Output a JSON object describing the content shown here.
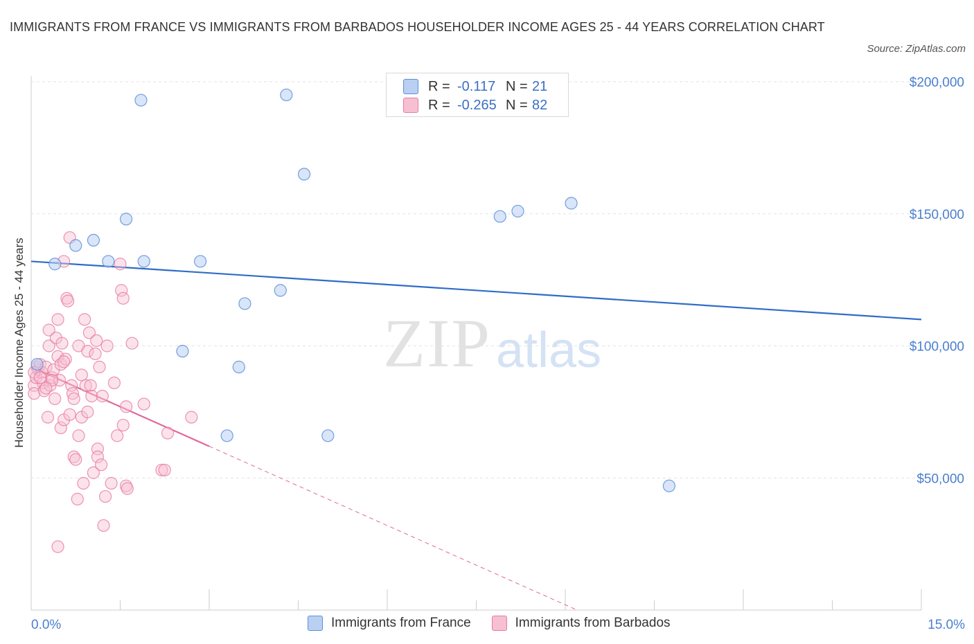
{
  "title": "IMMIGRANTS FROM FRANCE VS IMMIGRANTS FROM BARBADOS HOUSEHOLDER INCOME AGES 25 - 44 YEARS CORRELATION CHART",
  "source": "Source: ZipAtlas.com",
  "watermark": {
    "zip": "ZIP",
    "atlas": "atlas"
  },
  "colors": {
    "france": "#5b8fd9",
    "france_fill": "#b9d0f2",
    "france_line": "#2f6cc8",
    "barbados": "#e8799f",
    "barbados_fill": "#f6c0d2",
    "barbados_line": "#e0679a",
    "grid": "#e2e2e2",
    "axis": "#cccccc",
    "tick_text": "#4a7fd0"
  },
  "legend": {
    "france": {
      "r_label": "R =",
      "r_value": "-0.117",
      "n_label": "N =",
      "n_value": "21"
    },
    "barbados": {
      "r_label": "R =",
      "r_value": "-0.265",
      "n_label": "N =",
      "n_value": "82"
    }
  },
  "bottom_legend": {
    "france": "Immigrants from France",
    "barbados": "Immigrants from Barbados"
  },
  "chart_data": {
    "type": "scatter",
    "title": "IMMIGRANTS FROM FRANCE VS IMMIGRANTS FROM BARBADOS HOUSEHOLDER INCOME AGES 25 - 44 YEARS CORRELATION CHART",
    "xlabel": "",
    "ylabel": "Householder Income Ages 25 - 44 years",
    "xlim": [
      0,
      15
    ],
    "ylim": [
      0,
      200000
    ],
    "x_tick_labels": [
      "0.0%",
      "15.0%"
    ],
    "y_ticks": [
      50000,
      100000,
      150000,
      200000
    ],
    "y_tick_labels": [
      "$50,000",
      "$100,000",
      "$150,000",
      "$200,000"
    ],
    "grid": true,
    "legend_position": "top-center",
    "series": [
      {
        "name": "Immigrants from France",
        "r": -0.117,
        "n": 21,
        "points": [
          [
            0.1,
            93000
          ],
          [
            0.4,
            131000
          ],
          [
            0.75,
            138000
          ],
          [
            1.05,
            140000
          ],
          [
            1.3,
            132000
          ],
          [
            1.6,
            148000
          ],
          [
            1.85,
            193000
          ],
          [
            1.9,
            132000
          ],
          [
            2.55,
            98000
          ],
          [
            2.85,
            132000
          ],
          [
            3.3,
            66000
          ],
          [
            3.5,
            92000
          ],
          [
            3.6,
            116000
          ],
          [
            4.2,
            121000
          ],
          [
            4.3,
            195000
          ],
          [
            4.6,
            165000
          ],
          [
            5.0,
            66000
          ],
          [
            7.9,
            149000
          ],
          [
            8.2,
            151000
          ],
          [
            9.1,
            154000
          ],
          [
            10.75,
            47000
          ]
        ],
        "trend": {
          "x": [
            0,
            15
          ],
          "y": [
            132000,
            110000
          ]
        }
      },
      {
        "name": "Immigrants from Barbados",
        "r": -0.265,
        "n": 82,
        "points": [
          [
            0.05,
            85000
          ],
          [
            0.05,
            82000
          ],
          [
            0.08,
            88000
          ],
          [
            0.1,
            92000
          ],
          [
            0.12,
            91000
          ],
          [
            0.15,
            93000
          ],
          [
            0.18,
            90000
          ],
          [
            0.2,
            86000
          ],
          [
            0.22,
            83000
          ],
          [
            0.25,
            92000
          ],
          [
            0.28,
            73000
          ],
          [
            0.3,
            100000
          ],
          [
            0.3,
            106000
          ],
          [
            0.32,
            85000
          ],
          [
            0.35,
            88000
          ],
          [
            0.38,
            91000
          ],
          [
            0.4,
            80000
          ],
          [
            0.42,
            103000
          ],
          [
            0.45,
            96000
          ],
          [
            0.45,
            110000
          ],
          [
            0.48,
            87000
          ],
          [
            0.5,
            93000
          ],
          [
            0.5,
            69000
          ],
          [
            0.52,
            101000
          ],
          [
            0.55,
            72000
          ],
          [
            0.55,
            132000
          ],
          [
            0.58,
            95000
          ],
          [
            0.6,
            118000
          ],
          [
            0.62,
            117000
          ],
          [
            0.65,
            141000
          ],
          [
            0.65,
            74000
          ],
          [
            0.68,
            85000
          ],
          [
            0.7,
            82000
          ],
          [
            0.72,
            58000
          ],
          [
            0.72,
            80000
          ],
          [
            0.75,
            57000
          ],
          [
            0.78,
            42000
          ],
          [
            0.8,
            66000
          ],
          [
            0.8,
            100000
          ],
          [
            0.85,
            89000
          ],
          [
            0.85,
            73000
          ],
          [
            0.88,
            48000
          ],
          [
            0.9,
            110000
          ],
          [
            0.92,
            85000
          ],
          [
            0.95,
            98000
          ],
          [
            0.95,
            75000
          ],
          [
            0.98,
            105000
          ],
          [
            1.0,
            85000
          ],
          [
            1.02,
            81000
          ],
          [
            1.05,
            52000
          ],
          [
            1.08,
            97000
          ],
          [
            1.1,
            102000
          ],
          [
            1.12,
            61000
          ],
          [
            1.12,
            58000
          ],
          [
            1.15,
            92000
          ],
          [
            1.18,
            55000
          ],
          [
            1.2,
            81000
          ],
          [
            1.22,
            32000
          ],
          [
            1.25,
            43000
          ],
          [
            1.28,
            100000
          ],
          [
            1.35,
            48000
          ],
          [
            1.4,
            86000
          ],
          [
            1.45,
            66000
          ],
          [
            1.5,
            131000
          ],
          [
            1.52,
            121000
          ],
          [
            1.55,
            118000
          ],
          [
            1.55,
            70000
          ],
          [
            1.6,
            77000
          ],
          [
            1.6,
            47000
          ],
          [
            1.62,
            46000
          ],
          [
            1.7,
            101000
          ],
          [
            1.9,
            78000
          ],
          [
            2.2,
            53000
          ],
          [
            2.25,
            53000
          ],
          [
            2.3,
            67000
          ],
          [
            2.7,
            73000
          ],
          [
            0.05,
            90000
          ],
          [
            0.15,
            88000
          ],
          [
            0.35,
            87000
          ],
          [
            0.55,
            94000
          ],
          [
            0.45,
            24000
          ],
          [
            0.25,
            84000
          ]
        ],
        "trend": {
          "x": [
            0,
            3.0
          ],
          "y": [
            92000,
            62000
          ]
        },
        "trend_extension": {
          "x": [
            3.0,
            9.2
          ],
          "y": [
            62000,
            0
          ]
        }
      }
    ]
  }
}
